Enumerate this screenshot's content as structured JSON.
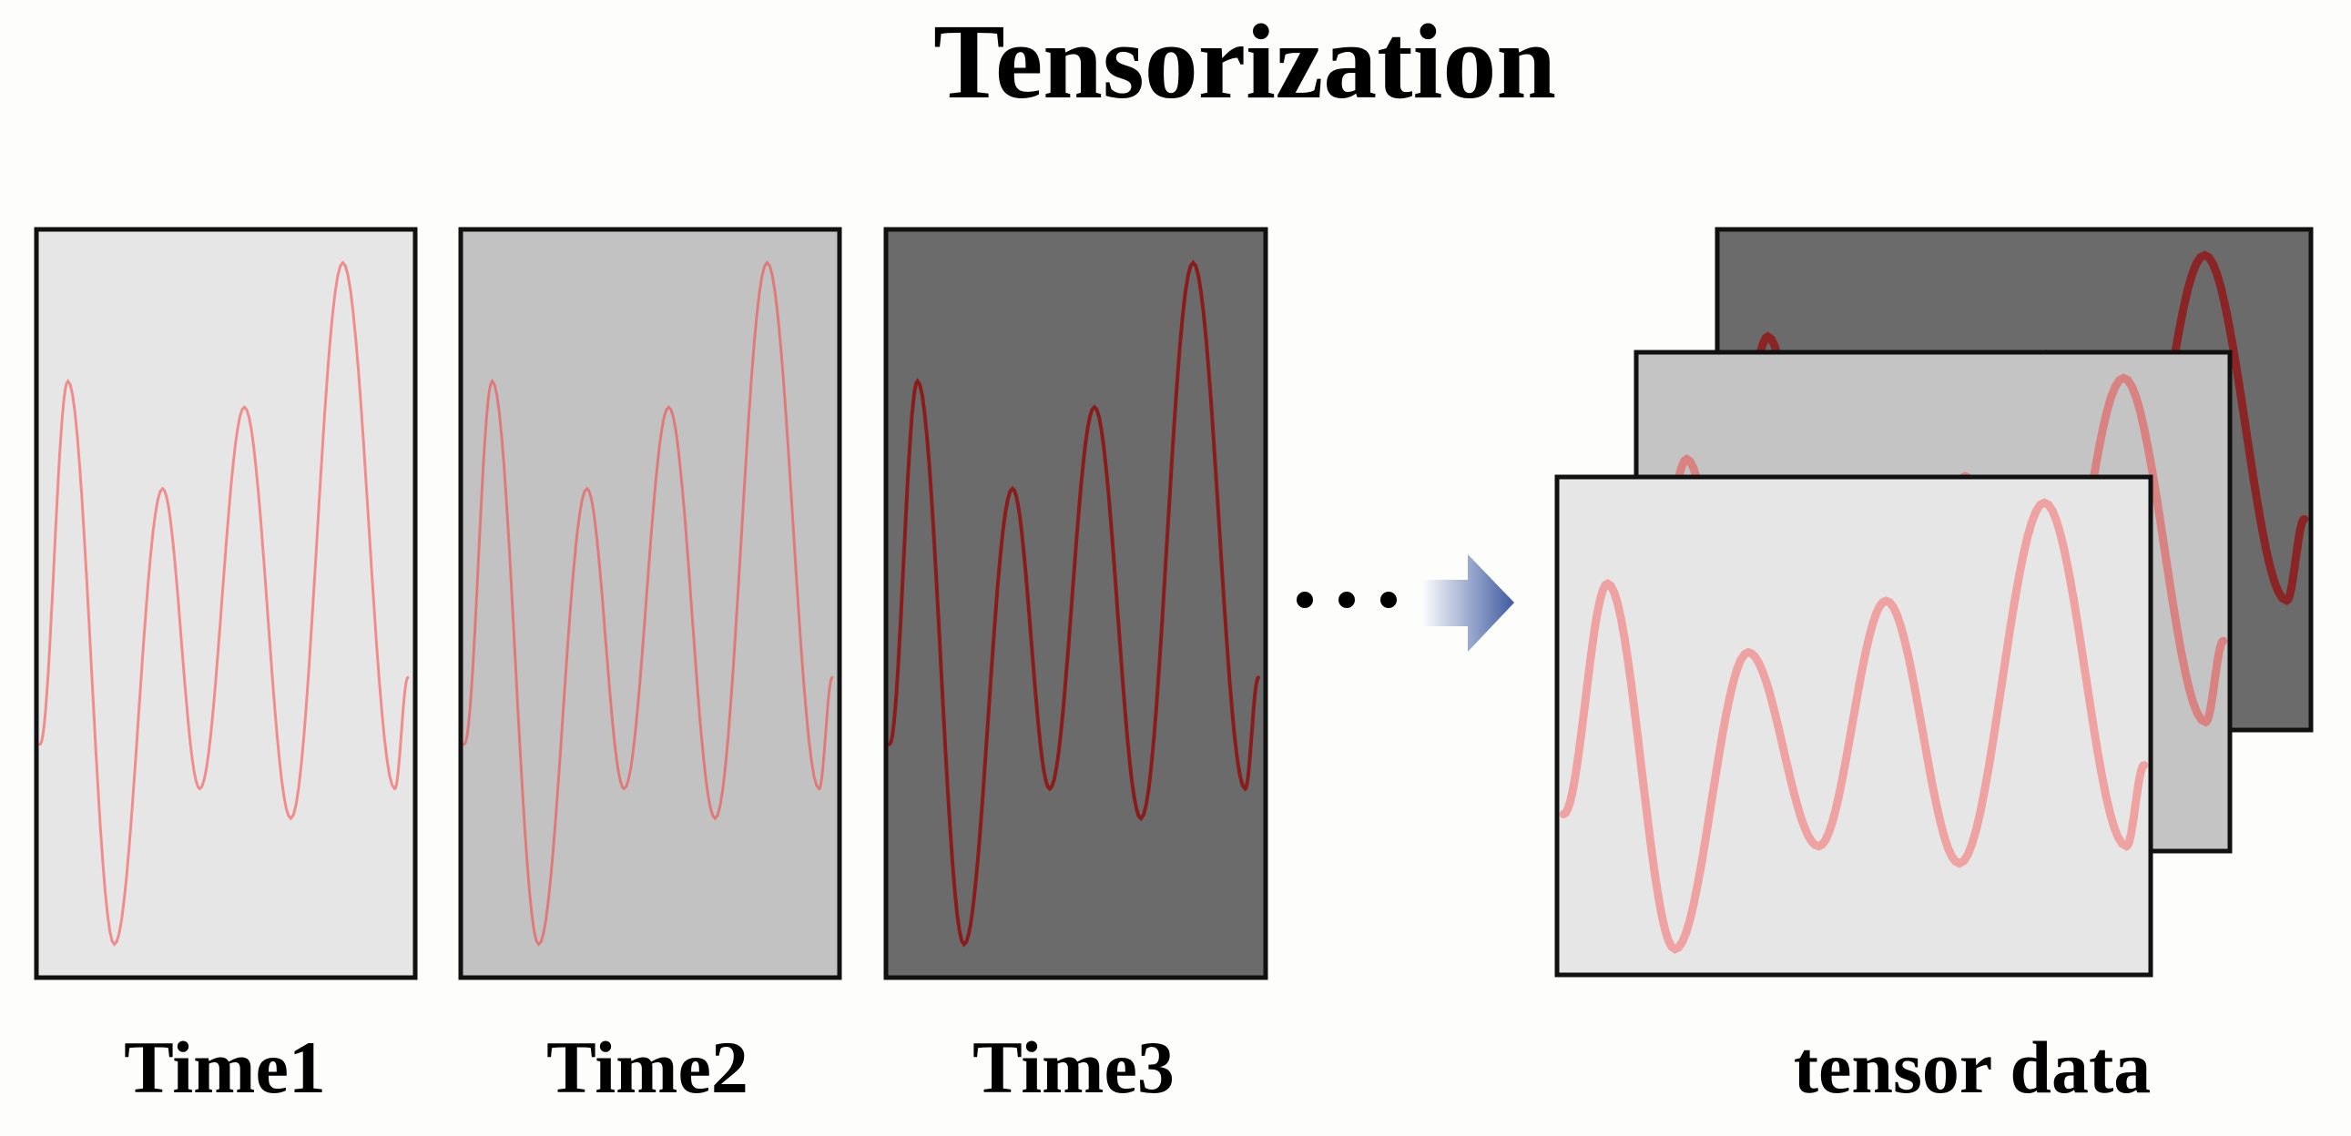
{
  "title": "Tensorization",
  "frames": [
    {
      "label": "Time1"
    },
    {
      "label": "Time2"
    },
    {
      "label": "Time3"
    }
  ],
  "tensor": {
    "label": "tensor data"
  }
}
